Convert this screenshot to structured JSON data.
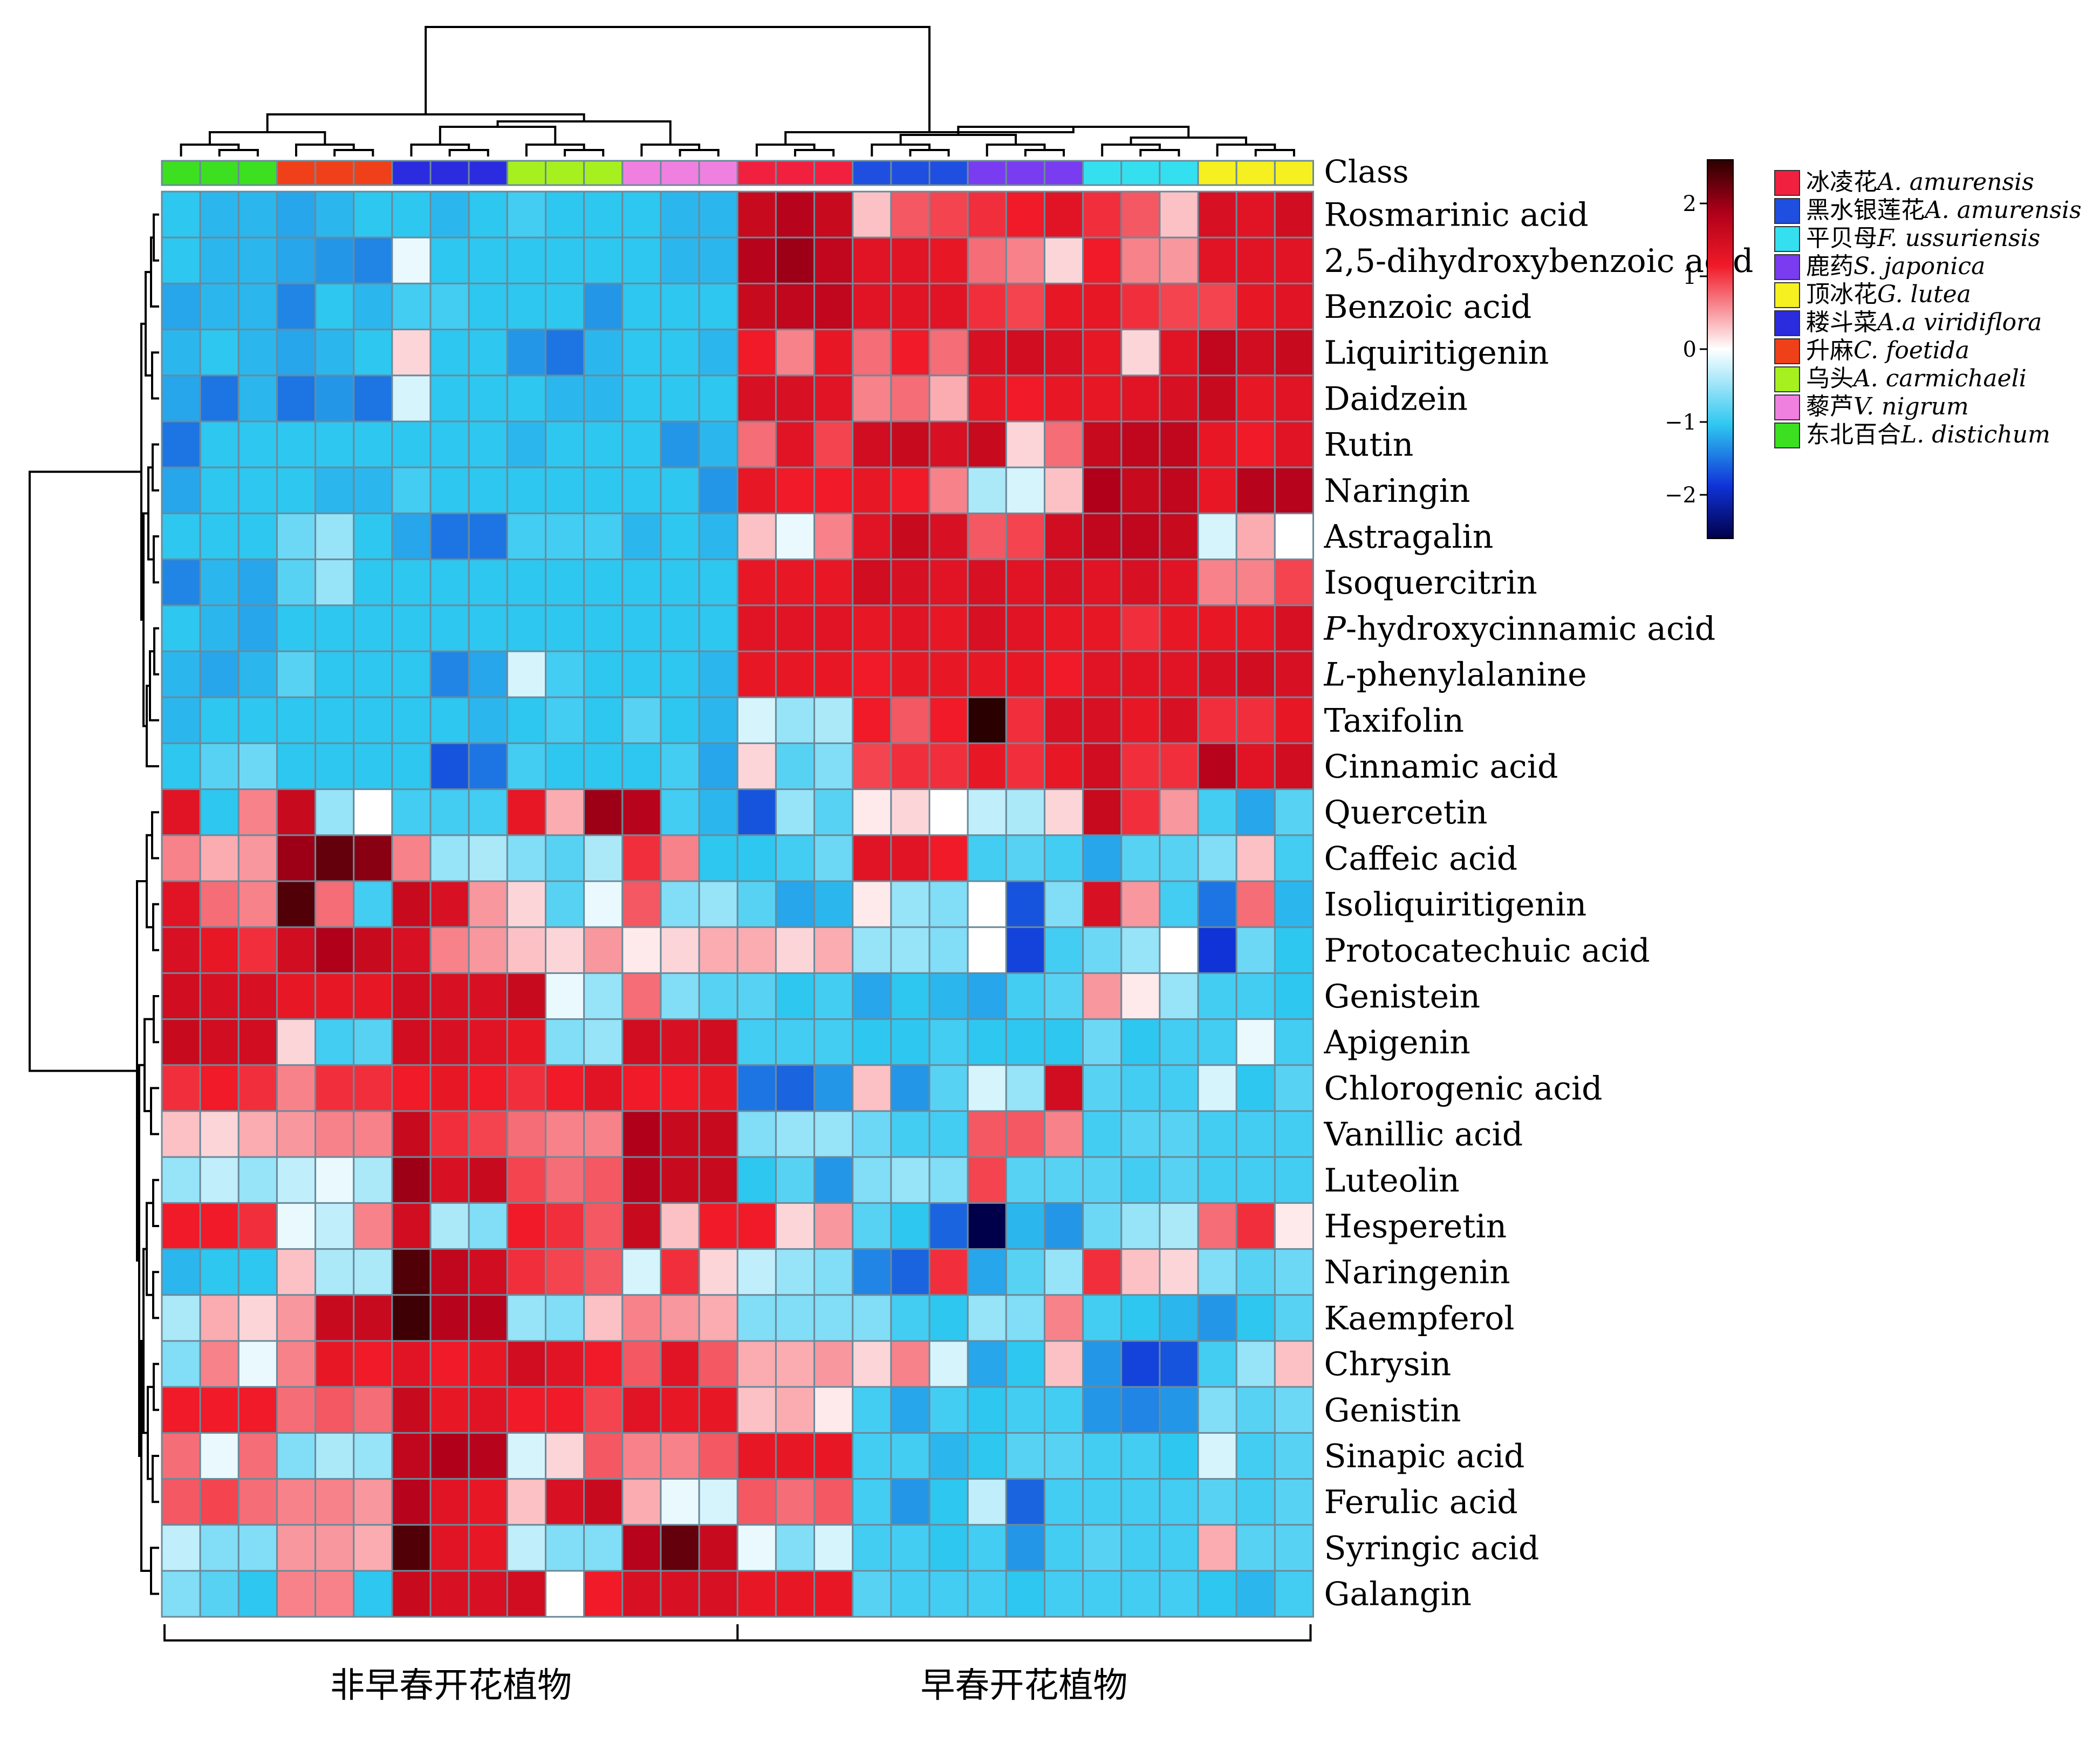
{
  "chart_data": {
    "type": "heatmap",
    "class_label": "Class",
    "class_order": [
      "L. distichum",
      "C. foetida",
      "A.a viridiflora",
      "A. carmichaeli",
      "V. nigrum",
      "A. amurensis (冰凌花)",
      "A. amurensis (黑水银莲花)",
      "S. japonica",
      "F. ussuriensis",
      "G. lutea"
    ],
    "columns_per_class": 3,
    "group_labels": [
      "非早春开花植物",
      "早春开花植物"
    ],
    "legend": [
      {
        "cn": "冰凌花",
        "latin": "A. amurensis",
        "color": "#f2203f"
      },
      {
        "cn": "黑水银莲花",
        "latin": "A. amurensis",
        "color": "#1f4fe0"
      },
      {
        "cn": "平贝母",
        "latin": "F. ussuriensis",
        "color": "#34e0f0"
      },
      {
        "cn": "鹿药",
        "latin": "S. japonica",
        "color": "#7a3cf0"
      },
      {
        "cn": "顶冰花",
        "latin": "G. lutea",
        "color": "#f6f020"
      },
      {
        "cn": "耧斗菜",
        "latin": "A.a viridiflora",
        "color": "#2b2be0"
      },
      {
        "cn": "升麻",
        "latin": "C. foetida",
        "color": "#f0401a"
      },
      {
        "cn": "乌头",
        "latin": "A. carmichaeli",
        "color": "#a6f020"
      },
      {
        "cn": "藜芦",
        "latin": "V. nigrum",
        "color": "#f080e0"
      },
      {
        "cn": "东北百合",
        "latin": "L. distichum",
        "color": "#3ce020"
      }
    ],
    "colorbar": {
      "ticks": [
        "2",
        "1",
        "0",
        "−1",
        "−2"
      ],
      "tick_values": [
        2,
        1,
        0,
        -1,
        -2
      ],
      "min": -2.6,
      "max": 2.6
    },
    "rows": [
      {
        "label": "Rosmarinic acid",
        "values": [
          -1.0,
          -1.1,
          -1.1,
          -1.2,
          -1.1,
          -1.0,
          -1.0,
          -1.1,
          -1.0,
          -0.9,
          -1.0,
          -1.0,
          -1.0,
          -1.1,
          -1.1,
          1.6,
          1.8,
          1.6,
          0.3,
          0.8,
          0.9,
          1.0,
          1.1,
          1.3,
          1.0,
          0.8,
          0.3,
          1.4,
          1.3,
          1.5
        ]
      },
      {
        "label": "2,5-dihydroxybenzoic acid",
        "values": [
          -1.0,
          -1.1,
          -1.1,
          -1.2,
          -1.3,
          -1.4,
          -0.1,
          -1.0,
          -1.0,
          -1.0,
          -1.0,
          -1.0,
          -1.0,
          -1.1,
          -1.1,
          1.8,
          2.0,
          1.7,
          1.3,
          1.3,
          1.2,
          0.7,
          0.6,
          0.2,
          1.1,
          0.6,
          0.5,
          1.3,
          1.3,
          1.3
        ]
      },
      {
        "label": "Benzoic acid",
        "values": [
          -1.2,
          -1.1,
          -1.1,
          -1.4,
          -1.0,
          -1.1,
          -0.9,
          -0.9,
          -1.0,
          -1.0,
          -1.0,
          -1.3,
          -1.0,
          -1.0,
          -1.0,
          1.6,
          1.7,
          1.7,
          1.3,
          1.3,
          1.3,
          1.0,
          0.9,
          1.2,
          1.2,
          1.0,
          0.9,
          0.9,
          1.2,
          1.3
        ]
      },
      {
        "label": "Liquiritigenin",
        "values": [
          -1.1,
          -1.0,
          -1.1,
          -1.2,
          -1.1,
          -1.0,
          0.2,
          -1.0,
          -1.0,
          -1.3,
          -1.5,
          -1.1,
          -1.0,
          -1.0,
          -1.1,
          1.1,
          0.6,
          1.2,
          0.7,
          1.1,
          0.7,
          1.4,
          1.5,
          1.4,
          1.2,
          0.2,
          1.3,
          1.7,
          1.5,
          1.6
        ]
      },
      {
        "label": "Daidzein",
        "values": [
          -1.2,
          -1.5,
          -1.1,
          -1.5,
          -1.3,
          -1.5,
          -0.2,
          -1.0,
          -1.0,
          -1.0,
          -1.1,
          -1.1,
          -1.0,
          -1.0,
          -1.0,
          1.4,
          1.4,
          1.3,
          0.6,
          0.7,
          0.4,
          1.2,
          1.1,
          1.2,
          1.2,
          1.3,
          1.4,
          1.6,
          1.2,
          1.3
        ]
      },
      {
        "label": "Rutin",
        "values": [
          -1.5,
          -1.0,
          -1.0,
          -1.0,
          -1.0,
          -1.0,
          -1.0,
          -1.0,
          -1.0,
          -1.1,
          -1.0,
          -1.0,
          -1.0,
          -1.3,
          -1.1,
          0.7,
          1.3,
          0.9,
          1.5,
          1.6,
          1.4,
          1.6,
          0.2,
          0.7,
          1.6,
          1.7,
          1.7,
          1.2,
          1.1,
          1.3
        ]
      },
      {
        "label": "Naringin",
        "values": [
          -1.2,
          -1.0,
          -1.0,
          -1.0,
          -1.1,
          -1.1,
          -0.9,
          -1.0,
          -1.0,
          -1.0,
          -1.0,
          -1.0,
          -1.0,
          -1.0,
          -1.3,
          1.2,
          1.1,
          1.1,
          1.2,
          1.1,
          0.6,
          -0.4,
          -0.2,
          0.3,
          1.9,
          1.6,
          1.7,
          1.2,
          1.8,
          1.8
        ]
      },
      {
        "label": "Astragalin",
        "values": [
          -1.0,
          -1.0,
          -1.0,
          -0.7,
          -0.5,
          -1.0,
          -1.2,
          -1.5,
          -1.5,
          -0.9,
          -0.9,
          -0.9,
          -1.1,
          -1.0,
          -1.1,
          0.3,
          -0.1,
          0.6,
          1.3,
          1.6,
          1.4,
          0.8,
          0.9,
          1.5,
          1.7,
          1.7,
          1.6,
          -0.2,
          0.4,
          0.0
        ]
      },
      {
        "label": "Isoquercitrin",
        "values": [
          -1.4,
          -1.1,
          -1.2,
          -0.8,
          -0.5,
          -1.0,
          -1.0,
          -1.0,
          -1.0,
          -1.0,
          -1.0,
          -1.0,
          -1.0,
          -1.0,
          -1.0,
          1.2,
          1.2,
          1.2,
          1.5,
          1.4,
          1.3,
          1.4,
          1.3,
          1.4,
          1.3,
          1.4,
          1.3,
          0.6,
          0.6,
          0.9
        ]
      },
      {
        "label": "P-hydroxycinnamic acid",
        "values": [
          -1.0,
          -1.1,
          -1.2,
          -1.0,
          -1.0,
          -1.0,
          -1.0,
          -1.0,
          -1.0,
          -1.0,
          -1.0,
          -1.0,
          -1.0,
          -1.0,
          -1.0,
          1.3,
          1.3,
          1.3,
          1.2,
          1.3,
          1.2,
          1.4,
          1.3,
          1.2,
          1.2,
          1.0,
          1.2,
          1.2,
          1.2,
          1.4
        ]
      },
      {
        "label": "L-phenylalanine",
        "values": [
          -1.1,
          -1.2,
          -1.1,
          -0.8,
          -1.0,
          -1.0,
          -1.0,
          -1.4,
          -1.2,
          -0.2,
          -0.9,
          -1.0,
          -1.0,
          -1.0,
          -1.1,
          1.2,
          1.2,
          1.2,
          1.1,
          1.2,
          1.2,
          1.2,
          1.2,
          1.1,
          1.3,
          1.3,
          1.3,
          1.4,
          1.5,
          1.4
        ]
      },
      {
        "label": "Taxifolin",
        "values": [
          -1.1,
          -1.0,
          -1.0,
          -1.0,
          -1.0,
          -1.0,
          -1.0,
          -1.0,
          -1.1,
          -1.0,
          -0.9,
          -1.0,
          -0.8,
          -1.0,
          -1.1,
          -0.2,
          -0.5,
          -0.4,
          1.1,
          0.8,
          1.1,
          2.6,
          1.0,
          1.4,
          1.4,
          1.2,
          1.4,
          1.0,
          1.0,
          1.2
        ]
      },
      {
        "label": "Cinnamic acid",
        "values": [
          -1.0,
          -0.8,
          -0.7,
          -1.0,
          -1.0,
          -1.0,
          -1.0,
          -1.7,
          -1.5,
          -0.9,
          -1.0,
          -1.0,
          -1.0,
          -0.9,
          -1.2,
          0.2,
          -0.8,
          -0.6,
          0.9,
          1.0,
          1.0,
          1.2,
          1.0,
          1.2,
          1.5,
          1.0,
          1.0,
          1.8,
          1.3,
          1.5
        ]
      },
      {
        "label": "Quercetin",
        "values": [
          1.3,
          -1.0,
          0.6,
          1.6,
          -0.5,
          0.0,
          -0.9,
          -0.9,
          -0.9,
          1.2,
          0.4,
          2.0,
          1.8,
          -0.9,
          -1.1,
          -1.7,
          -0.5,
          -0.8,
          0.1,
          0.2,
          0.0,
          -0.3,
          -0.4,
          0.2,
          1.6,
          1.0,
          0.5,
          -0.9,
          -1.2,
          -0.8
        ]
      },
      {
        "label": "Caffeic acid",
        "values": [
          0.6,
          0.4,
          0.5,
          2.0,
          2.3,
          2.1,
          0.6,
          -0.5,
          -0.4,
          -0.6,
          -0.8,
          -0.4,
          1.0,
          0.6,
          -1.0,
          -1.0,
          -0.9,
          -0.7,
          1.3,
          1.3,
          1.1,
          -0.9,
          -0.8,
          -0.9,
          -1.2,
          -0.8,
          -0.8,
          -0.6,
          0.3,
          -0.9
        ]
      },
      {
        "label": "Isoliquiritigenin",
        "values": [
          1.3,
          0.7,
          0.6,
          2.4,
          0.7,
          -0.9,
          1.6,
          1.4,
          0.5,
          0.2,
          -0.8,
          -0.1,
          0.8,
          -0.6,
          -0.5,
          -0.8,
          -1.2,
          -1.1,
          0.1,
          -0.5,
          -0.6,
          0.0,
          -1.7,
          -0.6,
          1.4,
          0.5,
          -0.9,
          -1.5,
          0.7,
          -1.1
        ]
      },
      {
        "label": "Protocatechuic acid",
        "values": [
          1.4,
          1.2,
          1.0,
          1.5,
          1.9,
          1.6,
          1.4,
          0.6,
          0.5,
          0.3,
          0.2,
          0.5,
          0.1,
          0.2,
          0.4,
          0.4,
          0.2,
          0.4,
          -0.5,
          -0.5,
          -0.6,
          0.0,
          -1.8,
          -0.9,
          -0.7,
          -0.5,
          0.0,
          -1.9,
          -0.7,
          -1.0
        ]
      },
      {
        "label": "Genistein",
        "values": [
          1.5,
          1.4,
          1.4,
          1.2,
          1.2,
          1.2,
          1.5,
          1.4,
          1.4,
          1.6,
          -0.1,
          -0.5,
          0.7,
          -0.6,
          -0.8,
          -0.8,
          -1.0,
          -0.9,
          -1.2,
          -1.0,
          -1.1,
          -1.2,
          -0.9,
          -0.8,
          0.5,
          0.1,
          -0.5,
          -0.9,
          -0.9,
          -1.0
        ]
      },
      {
        "label": "Apigenin",
        "values": [
          1.6,
          1.5,
          1.5,
          0.2,
          -0.9,
          -0.8,
          1.5,
          1.4,
          1.3,
          1.2,
          -0.6,
          -0.5,
          1.5,
          1.4,
          1.5,
          -0.9,
          -0.9,
          -0.9,
          -1.0,
          -1.0,
          -0.9,
          -1.0,
          -1.0,
          -1.0,
          -0.7,
          -1.0,
          -0.9,
          -0.9,
          -0.1,
          -0.9
        ]
      },
      {
        "label": "Chlorogenic acid",
        "values": [
          1.0,
          1.1,
          1.0,
          0.6,
          1.0,
          1.0,
          1.1,
          1.2,
          1.1,
          1.0,
          1.1,
          1.3,
          1.1,
          1.1,
          1.2,
          -1.5,
          -1.6,
          -1.3,
          0.3,
          -1.3,
          -0.8,
          -0.2,
          -0.5,
          1.5,
          -0.8,
          -0.9,
          -0.9,
          -0.2,
          -1.0,
          -0.8
        ]
      },
      {
        "label": "Vanillic acid",
        "values": [
          0.3,
          0.2,
          0.4,
          0.5,
          0.6,
          0.6,
          1.6,
          1.0,
          0.9,
          0.7,
          0.6,
          0.6,
          1.9,
          1.6,
          1.6,
          -0.6,
          -0.5,
          -0.5,
          -0.7,
          -0.9,
          -0.9,
          0.8,
          0.8,
          0.6,
          -0.9,
          -0.8,
          -0.8,
          -0.9,
          -0.9,
          -0.9
        ]
      },
      {
        "label": "Luteolin",
        "values": [
          -0.5,
          -0.3,
          -0.5,
          -0.3,
          -0.1,
          -0.4,
          2.0,
          1.4,
          1.6,
          0.9,
          0.7,
          0.8,
          1.8,
          1.6,
          1.6,
          -1.0,
          -0.8,
          -1.3,
          -0.6,
          -0.5,
          -0.6,
          0.9,
          -0.8,
          -0.8,
          -0.8,
          -0.9,
          -0.8,
          -0.9,
          -0.9,
          -0.9
        ]
      },
      {
        "label": "Hesperetin",
        "values": [
          1.1,
          1.1,
          1.0,
          -0.1,
          -0.3,
          0.6,
          1.5,
          -0.4,
          -0.6,
          1.1,
          1.0,
          0.8,
          1.6,
          0.3,
          1.1,
          1.1,
          0.2,
          0.5,
          -0.8,
          -1.0,
          -1.6,
          -2.6,
          -1.1,
          -1.3,
          -0.7,
          -0.5,
          -0.4,
          0.7,
          1.0,
          0.1
        ]
      },
      {
        "label": "Naringenin",
        "values": [
          -1.1,
          -1.0,
          -1.0,
          0.3,
          -0.4,
          -0.4,
          2.4,
          1.7,
          1.5,
          1.0,
          0.9,
          0.8,
          -0.2,
          1.0,
          0.2,
          -0.3,
          -0.5,
          -0.6,
          -1.4,
          -1.6,
          1.0,
          -1.2,
          -0.8,
          -0.5,
          1.0,
          0.3,
          0.2,
          -0.6,
          -0.8,
          -0.7
        ]
      },
      {
        "label": "Kaempferol",
        "values": [
          -0.4,
          0.4,
          0.2,
          0.5,
          1.6,
          1.6,
          2.5,
          1.8,
          1.8,
          -0.5,
          -0.6,
          0.3,
          0.6,
          0.5,
          0.4,
          -0.6,
          -0.6,
          -0.6,
          -0.6,
          -0.9,
          -1.0,
          -0.5,
          -0.6,
          0.6,
          -0.9,
          -1.0,
          -1.1,
          -1.3,
          -1.0,
          -0.8
        ]
      },
      {
        "label": "Chrysin",
        "values": [
          -0.6,
          0.6,
          -0.1,
          0.6,
          1.2,
          1.1,
          1.3,
          1.1,
          1.2,
          1.5,
          1.3,
          1.1,
          0.8,
          1.3,
          0.8,
          0.4,
          0.4,
          0.5,
          0.2,
          0.6,
          -0.2,
          -1.2,
          -1.0,
          0.3,
          -1.3,
          -1.8,
          -1.7,
          -0.9,
          -0.5,
          0.3
        ]
      },
      {
        "label": "Genistin",
        "values": [
          1.1,
          1.1,
          1.1,
          0.7,
          0.8,
          0.7,
          1.6,
          1.2,
          1.3,
          1.1,
          1.1,
          0.9,
          1.3,
          1.2,
          1.2,
          0.3,
          0.4,
          0.1,
          -0.9,
          -1.2,
          -0.9,
          -1.0,
          -0.9,
          -0.9,
          -1.3,
          -1.4,
          -1.3,
          -0.6,
          -0.8,
          -0.7
        ]
      },
      {
        "label": "Sinapic acid",
        "values": [
          0.7,
          -0.1,
          0.7,
          -0.6,
          -0.4,
          -0.5,
          1.7,
          1.9,
          1.8,
          -0.2,
          0.2,
          0.8,
          0.6,
          0.6,
          0.8,
          1.2,
          1.2,
          1.2,
          -0.9,
          -0.9,
          -1.1,
          -1.0,
          -0.8,
          -0.8,
          -0.9,
          -0.9,
          -1.0,
          -0.2,
          -0.9,
          -0.8
        ]
      },
      {
        "label": "Ferulic acid",
        "values": [
          0.8,
          0.9,
          0.7,
          0.6,
          0.6,
          0.5,
          1.8,
          1.3,
          1.2,
          0.3,
          1.4,
          1.6,
          0.4,
          -0.1,
          -0.2,
          0.8,
          0.7,
          0.8,
          -0.9,
          -1.3,
          -1.0,
          -0.3,
          -1.6,
          -0.9,
          -0.9,
          -0.9,
          -0.9,
          -0.8,
          -0.9,
          -0.8
        ]
      },
      {
        "label": "Syringic acid",
        "values": [
          -0.3,
          -0.6,
          -0.6,
          0.5,
          0.5,
          0.4,
          2.4,
          1.3,
          1.2,
          -0.3,
          -0.6,
          -0.6,
          1.8,
          2.3,
          1.6,
          -0.1,
          -0.6,
          -0.2,
          -0.9,
          -0.9,
          -1.0,
          -0.9,
          -1.3,
          -0.9,
          -0.8,
          -0.9,
          -0.9,
          0.4,
          -0.8,
          -0.8
        ]
      },
      {
        "label": "Galangin",
        "values": [
          -0.6,
          -0.8,
          -1.0,
          0.6,
          0.6,
          -1.0,
          1.6,
          1.4,
          1.4,
          1.5,
          0.0,
          1.1,
          1.4,
          1.4,
          1.4,
          1.2,
          1.2,
          1.2,
          -0.8,
          -0.9,
          -0.9,
          -0.9,
          -1.0,
          -0.9,
          -0.9,
          -0.9,
          -0.9,
          -1.0,
          -1.1,
          -0.9
        ]
      }
    ]
  }
}
